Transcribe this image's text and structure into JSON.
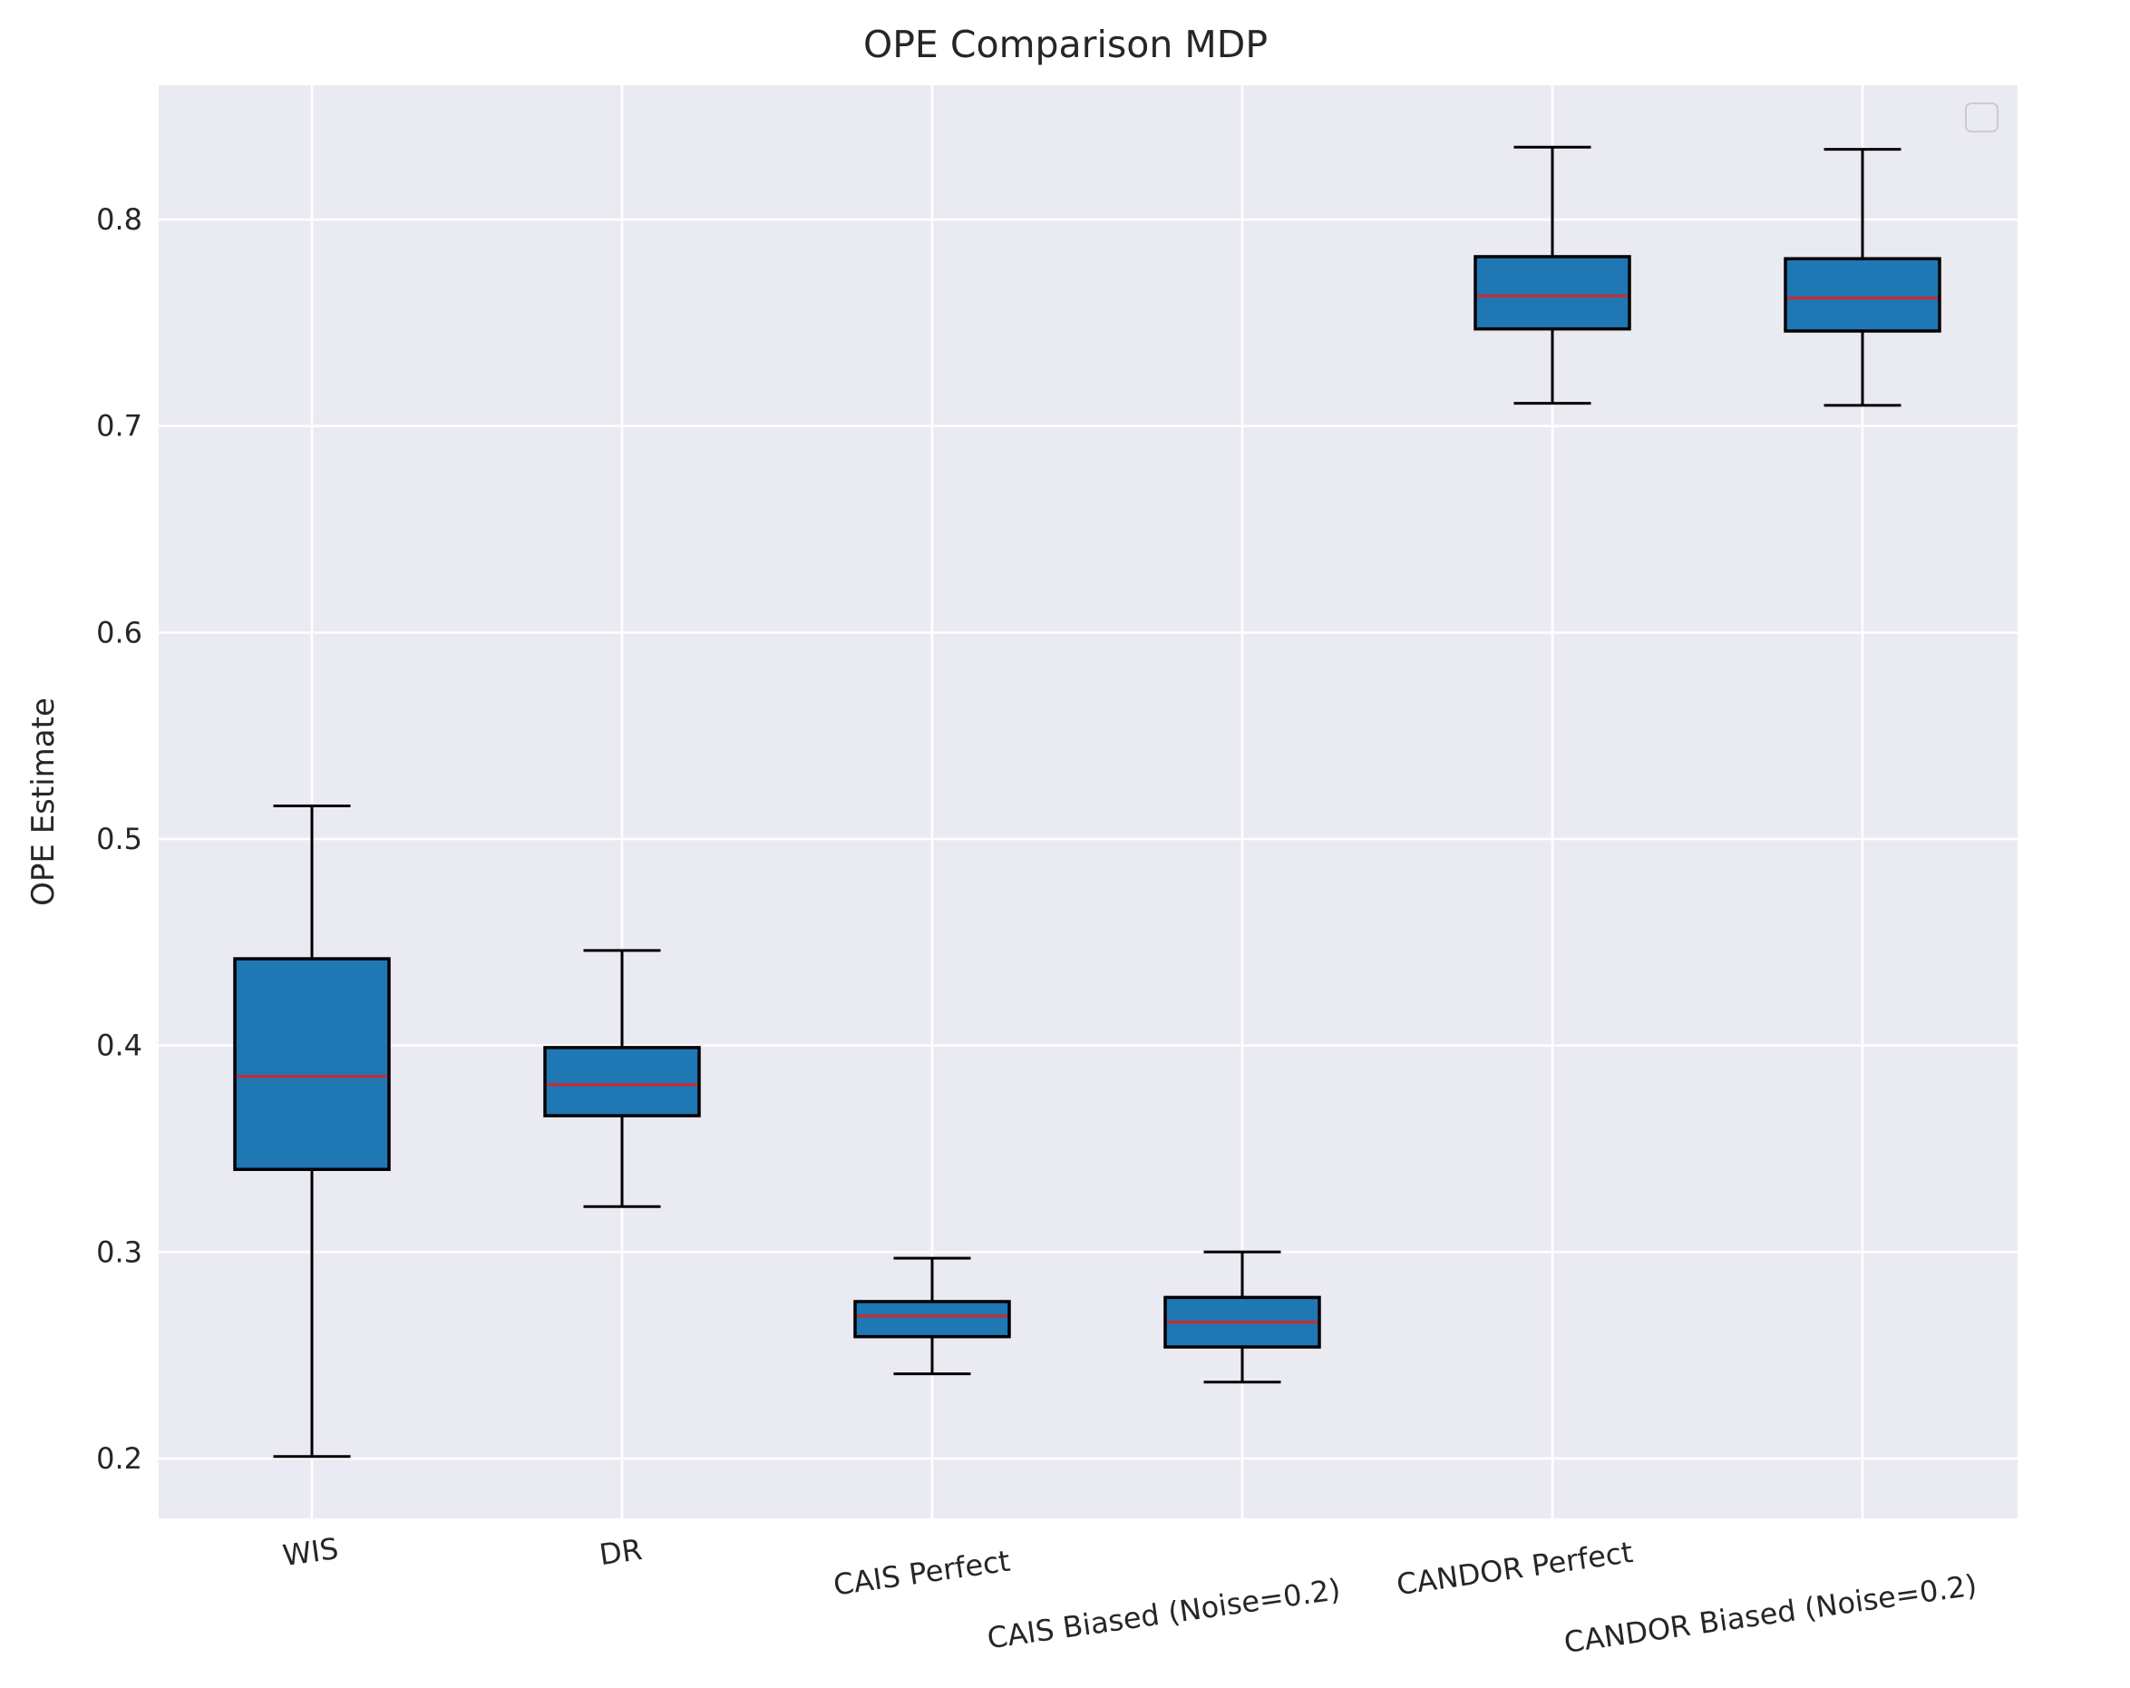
{
  "chart_data": {
    "type": "box",
    "title": "OPE Comparison MDP",
    "xlabel": "",
    "ylabel": "OPE Estimate",
    "ylim": [
      0.171,
      0.865
    ],
    "yticks": [
      0.2,
      0.3,
      0.4,
      0.5,
      0.6,
      0.7,
      0.8
    ],
    "ytick_labels": [
      "0.2",
      "0.3",
      "0.4",
      "0.5",
      "0.6",
      "0.7",
      "0.8"
    ],
    "grid": true,
    "legend": {
      "position": "top-right",
      "entries": []
    },
    "categories": [
      "WIS",
      "DR",
      "CAIS Perfect",
      "CAIS Biased (Noise=0.2)",
      "CANDOR Perfect",
      "CANDOR Biased (Noise=0.2)"
    ],
    "boxes": [
      {
        "whislo": 0.201,
        "q1": 0.34,
        "med": 0.385,
        "q3": 0.442,
        "whishi": 0.516
      },
      {
        "whislo": 0.322,
        "q1": 0.366,
        "med": 0.381,
        "q3": 0.399,
        "whishi": 0.446
      },
      {
        "whislo": 0.241,
        "q1": 0.259,
        "med": 0.269,
        "q3": 0.276,
        "whishi": 0.297
      },
      {
        "whislo": 0.237,
        "q1": 0.254,
        "med": 0.266,
        "q3": 0.278,
        "whishi": 0.3
      },
      {
        "whislo": 0.711,
        "q1": 0.747,
        "med": 0.763,
        "q3": 0.782,
        "whishi": 0.835
      },
      {
        "whislo": 0.71,
        "q1": 0.746,
        "med": 0.762,
        "q3": 0.781,
        "whishi": 0.834
      }
    ],
    "colors": {
      "plot_background": "#eaeaf2",
      "grid": "#ffffff",
      "box_fill": "#1f77b4",
      "box_edge": "#000000",
      "median": "#d62728",
      "whisker": "#000000"
    }
  }
}
